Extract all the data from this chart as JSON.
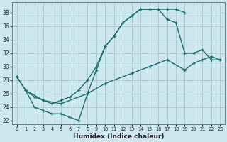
{
  "xlabel": "Humidex (Indice chaleur)",
  "bg_color": "#cce8ec",
  "grid_color": "#aaccd4",
  "line_color": "#1a6b6b",
  "xlim": [
    -0.5,
    23.5
  ],
  "ylim": [
    21.5,
    39.5
  ],
  "xticks": [
    0,
    1,
    2,
    3,
    4,
    5,
    6,
    7,
    8,
    9,
    10,
    11,
    12,
    13,
    14,
    15,
    16,
    17,
    18,
    19,
    20,
    21,
    22,
    23
  ],
  "yticks": [
    22,
    24,
    26,
    28,
    30,
    32,
    34,
    36,
    38
  ],
  "line1_x": [
    0,
    1,
    2,
    3,
    4,
    5,
    6,
    7,
    8,
    9,
    10,
    11,
    12,
    13,
    14,
    15,
    16,
    17,
    18,
    19
  ],
  "line1_y": [
    28.5,
    26.5,
    25.5,
    25,
    24.5,
    25,
    25.5,
    26.5,
    28,
    30,
    33,
    34.5,
    36.5,
    37.5,
    38.5,
    38.5,
    38.5,
    38.5,
    38.5,
    38
  ],
  "line2_x": [
    0,
    1,
    2,
    3,
    4,
    5,
    6,
    7,
    8,
    9,
    10,
    11,
    12,
    13,
    14,
    15,
    16,
    17,
    18,
    19,
    20,
    21,
    22,
    23
  ],
  "line2_y": [
    28.5,
    26.5,
    24,
    23.5,
    23,
    23,
    22.5,
    22,
    26,
    29.5,
    33,
    34.5,
    36.5,
    37.5,
    38.5,
    38.5,
    38.5,
    37,
    36.5,
    32,
    32,
    32.5,
    31,
    31
  ],
  "line3_x": [
    1,
    3,
    5,
    8,
    10,
    13,
    15,
    17,
    19,
    20,
    21,
    22,
    23
  ],
  "line3_y": [
    26.5,
    25,
    24.5,
    26,
    27.5,
    29,
    30,
    31,
    29.5,
    30.5,
    31,
    31.5,
    31
  ]
}
